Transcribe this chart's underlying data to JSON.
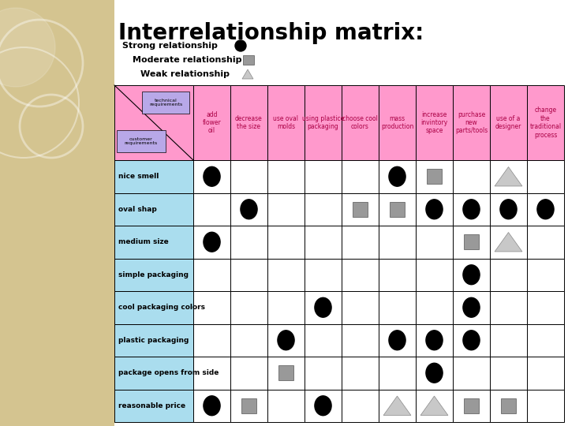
{
  "title": "Interrelationship matrix:",
  "title_fontsize": 20,
  "bg_color_left": "#d4c490",
  "bg_color_right": "#ffffff",
  "header_pink": "#ff99cc",
  "row_cyan": "#aaddee",
  "corner_purple": "#b8a8e8",
  "legend_gray": "#999999",
  "legend_triangle": "#c8c8c8",
  "col_headers": [
    "add\nflower\noil",
    "decrease\nthe size",
    "use oval\nmolds",
    "using plastice\npackaging",
    "choose cool\ncolors",
    "mass\nproduction",
    "increase\ninvintory\nspace",
    "purchase\nnew\nparts/tools",
    "use of a\ndesigner",
    "change\nthe\ntraditional\nprocess"
  ],
  "row_headers": [
    "nice smell",
    "oval shap",
    "medium size",
    "simple packaging",
    "cool packaging colors",
    "plastic packaging",
    "package opens from side",
    "reasonable price"
  ],
  "matrix": [
    [
      "S",
      "",
      "",
      "",
      "",
      "S",
      "M",
      "",
      "W",
      ""
    ],
    [
      "",
      "S",
      "",
      "",
      "M",
      "M",
      "S",
      "S",
      "S",
      "S"
    ],
    [
      "S",
      "",
      "",
      "",
      "",
      "",
      "",
      "M",
      "W",
      ""
    ],
    [
      "",
      "",
      "",
      "",
      "",
      "",
      "",
      "S",
      "",
      ""
    ],
    [
      "",
      "",
      "",
      "S",
      "",
      "",
      "",
      "S",
      "",
      ""
    ],
    [
      "",
      "",
      "S",
      "",
      "",
      "S",
      "S",
      "S",
      "",
      ""
    ],
    [
      "",
      "",
      "M",
      "",
      "",
      "",
      "S",
      "",
      "",
      ""
    ],
    [
      "S",
      "M",
      "",
      "S",
      "",
      "W",
      "W",
      "M",
      "M",
      ""
    ]
  ]
}
